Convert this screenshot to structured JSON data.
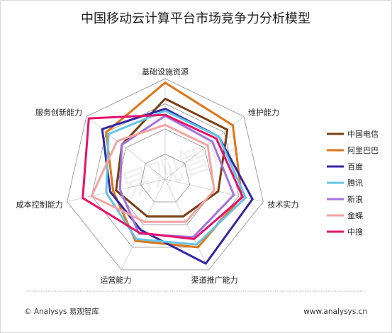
{
  "chart_data": {
    "type": "radar",
    "title": "中国移动云计算平台市场竞争力分析模型",
    "axes": [
      "基础设施资源",
      "维护能力",
      "技术实力",
      "渠道推广能力",
      "运营能力",
      "成本控制能力",
      "服务创新能力"
    ],
    "rings": 4,
    "rlim": [
      0,
      10
    ],
    "series": [
      {
        "name": "中国电信",
        "color": "#7b3f12",
        "values": [
          8.0,
          7.9,
          5.4,
          4.1,
          4.1,
          5.0,
          5.5
        ]
      },
      {
        "name": "阿里巴巴",
        "color": "#e07417",
        "values": [
          9.6,
          8.6,
          7.8,
          7.5,
          6.8,
          5.3,
          7.5
        ]
      },
      {
        "name": "百度",
        "color": "#3427a6",
        "values": [
          7.0,
          6.8,
          8.9,
          9.3,
          5.6,
          5.6,
          8.0
        ]
      },
      {
        "name": "腾讯",
        "color": "#63c5e6",
        "values": [
          6.8,
          6.8,
          8.2,
          7.2,
          6.6,
          6.0,
          7.2
        ]
      },
      {
        "name": "新浪",
        "color": "#a473e1",
        "values": [
          6.3,
          6.0,
          7.0,
          6.4,
          6.0,
          4.6,
          5.5
        ]
      },
      {
        "name": "金蝶",
        "color": "#f4a3a3",
        "values": [
          5.4,
          5.4,
          5.0,
          4.7,
          4.7,
          7.5,
          6.1
        ]
      },
      {
        "name": "中搜",
        "color": "#e5136b",
        "values": [
          6.4,
          6.5,
          7.9,
          6.6,
          5.9,
          8.4,
          9.7
        ]
      }
    ],
    "legend_position": "right"
  },
  "footer": {
    "source": "© Analysys 易观智库",
    "website": "www.analysys.cn"
  },
  "watermark": "易观智库"
}
